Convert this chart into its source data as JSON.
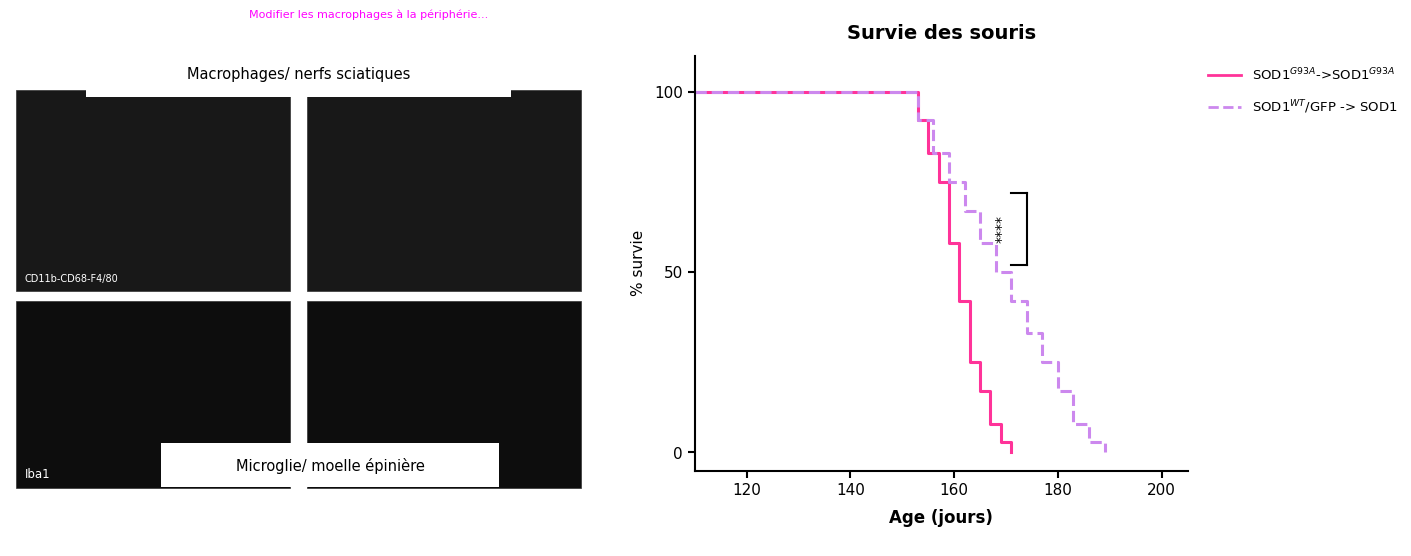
{
  "title": "Survie des souris",
  "xlabel": "Age (jours)",
  "ylabel": "% survie",
  "xlim": [
    110,
    205
  ],
  "ylim": [
    -5,
    110
  ],
  "xticks": [
    120,
    140,
    160,
    180,
    200
  ],
  "yticks": [
    0,
    50,
    100
  ],
  "line1_color": "#FF3399",
  "line2_color": "#CC88EE",
  "background_color": "#FFFFFF",
  "left_panel_bg": "#000000",
  "macrophages_label": "Macrophages/ nerfs sciatiques",
  "microglie_label": "Microglie/ moelle épinière",
  "cd11b_label": "CD11b-CD68-F4/80",
  "iba1_label": "Iba1",
  "significance": "****",
  "bottom_bar_color": "#1a1a1a",
  "top_pink_color": "#FF00FF",
  "legend_line1": "SOD1$^{G93A}$->SOD1$^{G93A}$",
  "legend_line2": "SOD1$^{WT}$/GFP -> SOD1",
  "line1_x": [
    110,
    150,
    150,
    153,
    153,
    155,
    155,
    157,
    157,
    159,
    159,
    161,
    161,
    163,
    163,
    165,
    165,
    167,
    167,
    169,
    169,
    171,
    171
  ],
  "line1_y": [
    100,
    100,
    100,
    92,
    92,
    83,
    83,
    75,
    75,
    58,
    58,
    42,
    42,
    25,
    25,
    17,
    17,
    8,
    8,
    3,
    3,
    0,
    0
  ],
  "line2_x": [
    110,
    153,
    153,
    156,
    156,
    159,
    159,
    162,
    162,
    165,
    165,
    168,
    168,
    171,
    171,
    174,
    174,
    177,
    177,
    180,
    180,
    183,
    183,
    186,
    186,
    189,
    189
  ],
  "line2_y": [
    100,
    100,
    92,
    92,
    83,
    83,
    75,
    75,
    67,
    67,
    58,
    58,
    50,
    50,
    42,
    42,
    33,
    33,
    25,
    25,
    17,
    17,
    8,
    8,
    3,
    3,
    0
  ],
  "sig_x": 174,
  "sig_y_top": 72,
  "sig_y_bot": 52,
  "sig_bar_horiz": 3
}
